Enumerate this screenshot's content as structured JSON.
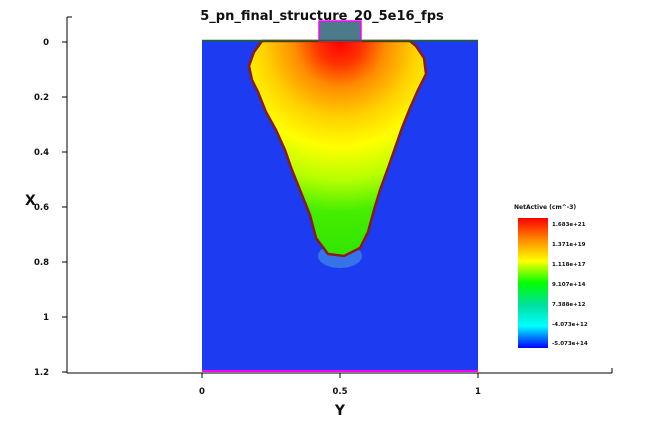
{
  "title": "5_pn_final_structure_20_5e16_fps",
  "x_axis_label": "X",
  "y_axis_label": "Y",
  "x_ticks": [
    "0",
    "0.2",
    "0.4",
    "0.6",
    "0.8",
    "1",
    "1.2"
  ],
  "y_ticks": [
    "0",
    "0.5",
    "1"
  ],
  "legend": {
    "title": "NetActive (cm^-3)",
    "labels": [
      "1.683e+21",
      "1.371e+19",
      "1.118e+17",
      "9.107e+14",
      "7.388e+12",
      "-4.073e+12",
      "-5.073e+14"
    ],
    "colors": [
      "#ff0000",
      "#ff8c00",
      "#ffff00",
      "#00ff00",
      "#00e0a0",
      "#00ffff",
      "#0000ff"
    ]
  },
  "colors": {
    "substrate": "#1d3bf0",
    "junction": "#8b1a1a",
    "contact": "#4d7a8a",
    "contact_outline": "#ff00ff",
    "bottom_contact": "#ff00ff"
  },
  "chart_data": {
    "type": "heatmap",
    "title": "5_pn_final_structure_20_5e16_fps",
    "xlabel": "X",
    "ylabel": "Y",
    "xlim": [
      0,
      1.2
    ],
    "ylim": [
      0,
      1
    ],
    "colorbar_label": "NetActive (cm^-3)",
    "colorbar_ticks": [
      "1.683e+21",
      "1.371e+19",
      "1.118e+17",
      "9.107e+14",
      "7.388e+12",
      "-4.073e+12",
      "-5.073e+14"
    ],
    "junction_depth_x": 0.79,
    "junction_top_y_range": [
      0.2,
      0.81
    ]
  }
}
